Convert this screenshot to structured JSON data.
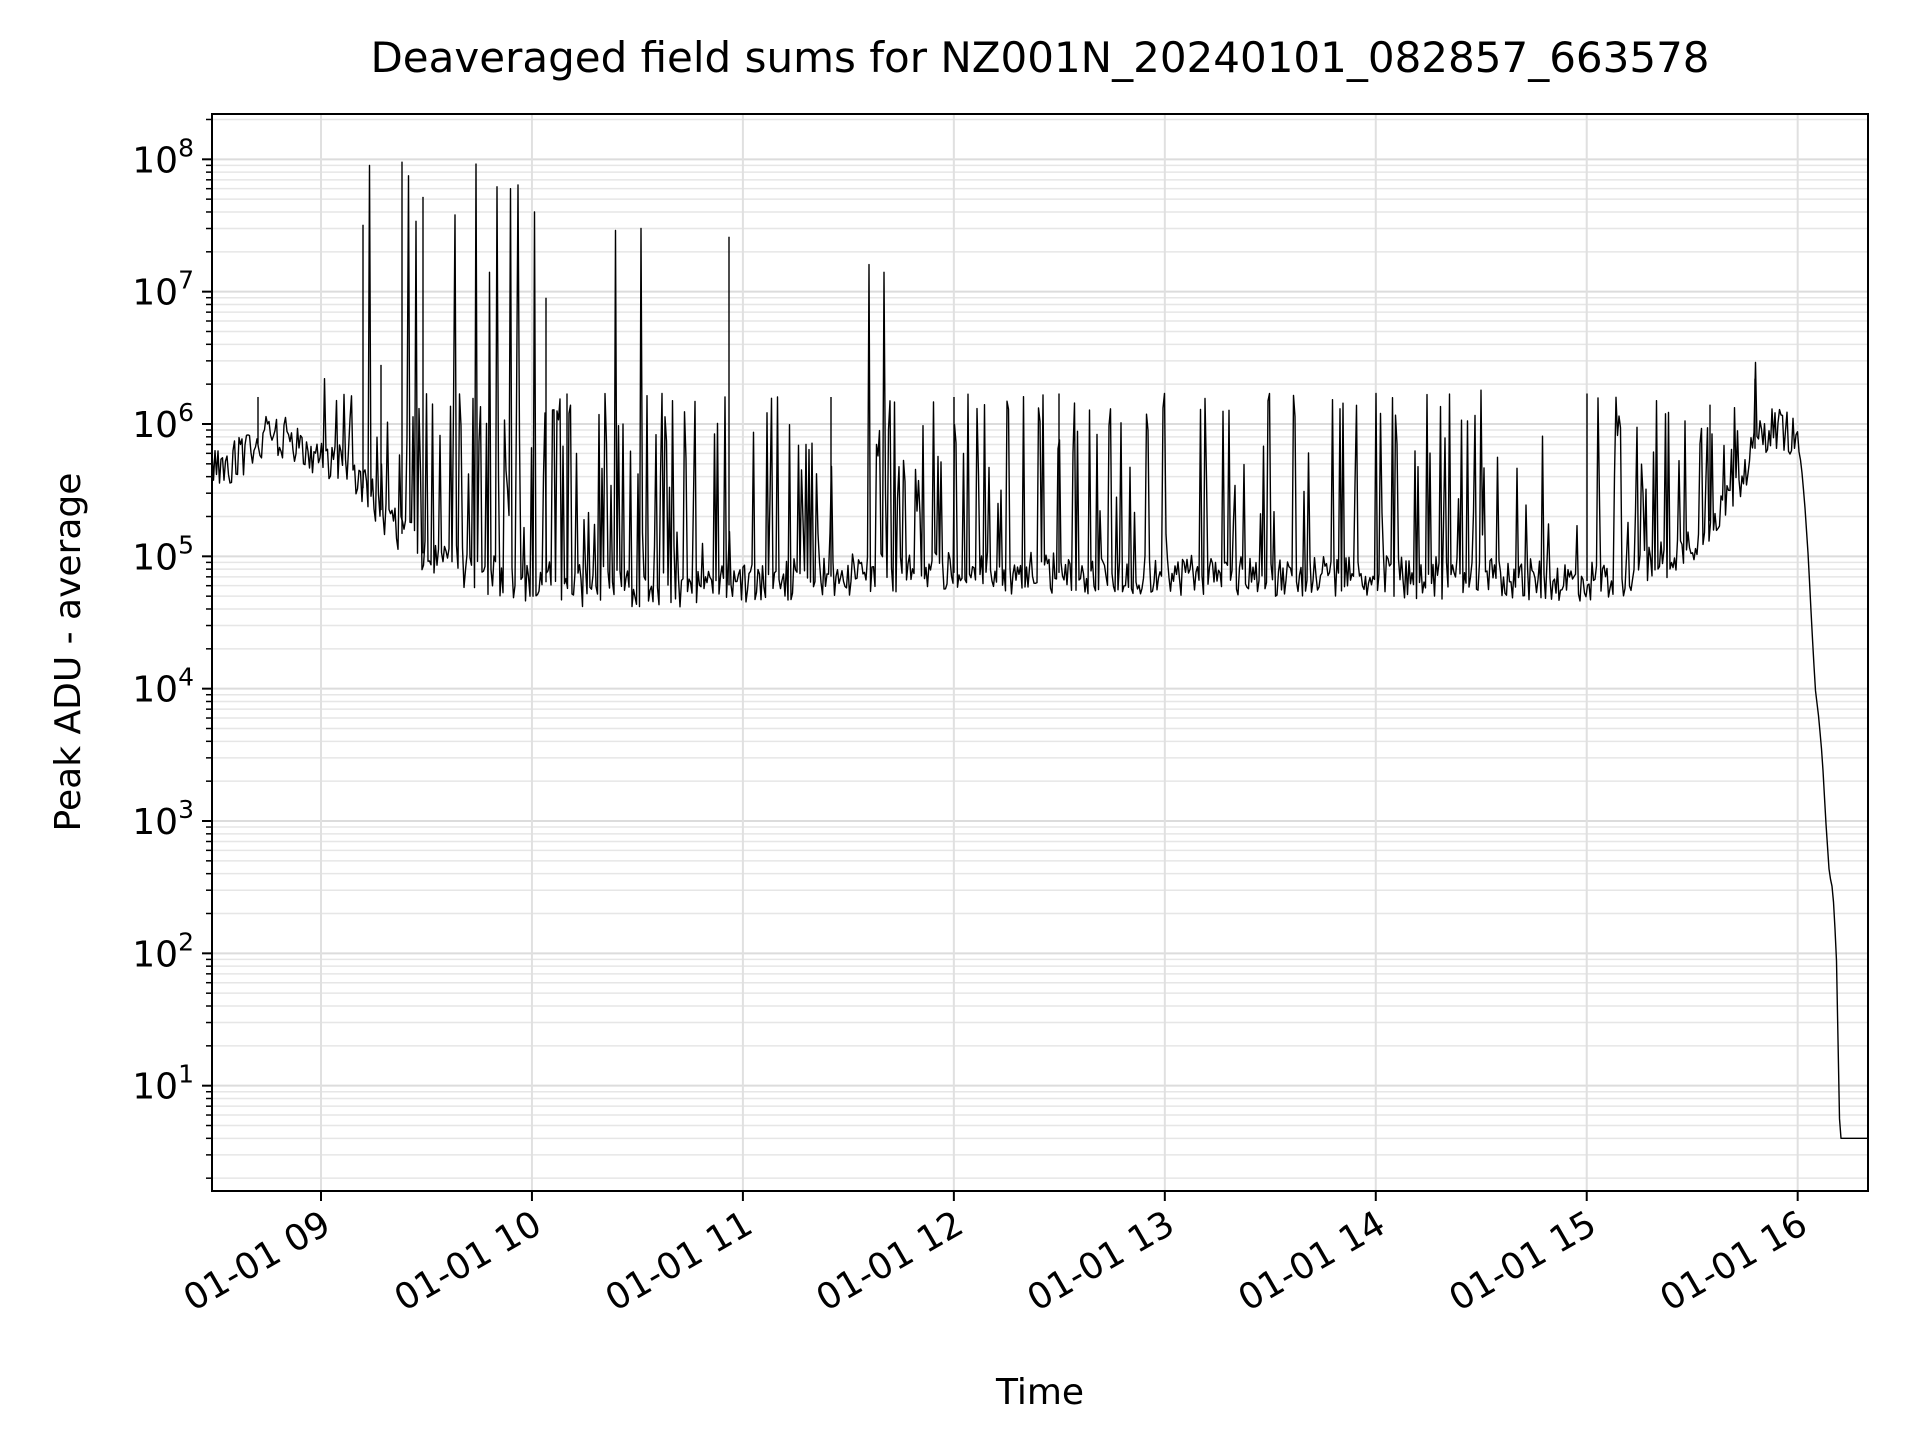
{
  "chart_data": {
    "type": "line",
    "title": "Deaveraged field sums for NZ001N_20240101_082857_663578",
    "xlabel": "Time",
    "ylabel": "Peak ADU - average",
    "yscale": "log",
    "ylim": [
      1.6,
      220000000
    ],
    "xlim": [
      "2024-01-01T08:29:00",
      "2024-01-01T16:20:00"
    ],
    "grid": "major and minor, light gray",
    "legend": "none",
    "line_color": "#000000",
    "x_ticks": [
      {
        "t": "2024-01-01T09:00:00",
        "label": "01-01 09"
      },
      {
        "t": "2024-01-01T10:00:00",
        "label": "01-01 10"
      },
      {
        "t": "2024-01-01T11:00:00",
        "label": "01-01 11"
      },
      {
        "t": "2024-01-01T12:00:00",
        "label": "01-01 12"
      },
      {
        "t": "2024-01-01T13:00:00",
        "label": "01-01 13"
      },
      {
        "t": "2024-01-01T14:00:00",
        "label": "01-01 14"
      },
      {
        "t": "2024-01-01T15:00:00",
        "label": "01-01 15"
      },
      {
        "t": "2024-01-01T16:00:00",
        "label": "01-01 16"
      }
    ],
    "y_ticks": [
      {
        "value": 10,
        "base": "10",
        "exp": "1"
      },
      {
        "value": 100,
        "base": "10",
        "exp": "2"
      },
      {
        "value": 1000,
        "base": "10",
        "exp": "3"
      },
      {
        "value": 10000,
        "base": "10",
        "exp": "4"
      },
      {
        "value": 100000,
        "base": "10",
        "exp": "5"
      },
      {
        "value": 1000000,
        "base": "10",
        "exp": "6"
      },
      {
        "value": 10000000,
        "base": "10",
        "exp": "7"
      },
      {
        "value": 100000000,
        "base": "10",
        "exp": "8"
      }
    ],
    "series": [
      {
        "points": [
          [
            "2024-01-01T08:29:00",
            450000
          ],
          [
            "2024-01-01T08:35:00",
            520000
          ],
          [
            "2024-01-01T08:40:00",
            640000
          ],
          [
            "2024-01-01T08:45:00",
            820000
          ],
          [
            "2024-01-01T08:50:00",
            780000
          ],
          [
            "2024-01-01T08:55:00",
            640000
          ],
          [
            "2024-01-01T09:00:00",
            580000
          ],
          [
            "2024-01-01T09:05:00",
            520000
          ],
          [
            "2024-01-01T09:10:00",
            380000
          ],
          [
            "2024-01-01T09:15:00",
            260000
          ],
          [
            "2024-01-01T09:20:00",
            180000
          ],
          [
            "2024-01-01T09:25:00",
            130000
          ],
          [
            "2024-01-01T09:30:00",
            100000
          ],
          [
            "2024-01-01T09:40:00",
            85000
          ],
          [
            "2024-01-01T09:50:00",
            70000
          ],
          [
            "2024-01-01T10:00:00",
            65000
          ],
          [
            "2024-01-01T10:15:00",
            60000
          ],
          [
            "2024-01-01T10:30:00",
            58000
          ],
          [
            "2024-01-01T10:45:00",
            56000
          ],
          [
            "2024-01-01T11:00:00",
            62000
          ],
          [
            "2024-01-01T11:30:00",
            72000
          ],
          [
            "2024-01-01T12:00:00",
            75000
          ],
          [
            "2024-01-01T12:30:00",
            75000
          ],
          [
            "2024-01-01T13:00:00",
            72000
          ],
          [
            "2024-01-01T13:30:00",
            72000
          ],
          [
            "2024-01-01T14:00:00",
            70000
          ],
          [
            "2024-01-01T14:30:00",
            68000
          ],
          [
            "2024-01-01T15:00:00",
            65000
          ],
          [
            "2024-01-01T15:10:00",
            70000
          ],
          [
            "2024-01-01T15:20:00",
            90000
          ],
          [
            "2024-01-01T15:30:00",
            130000
          ],
          [
            "2024-01-01T15:40:00",
            260000
          ],
          [
            "2024-01-01T15:47:00",
            600000
          ],
          [
            "2024-01-01T15:52:00",
            950000
          ],
          [
            "2024-01-01T15:57:00",
            900000
          ],
          [
            "2024-01-01T16:00:00",
            700000
          ],
          [
            "2024-01-01T16:01:00",
            500000
          ],
          [
            "2024-01-01T16:02:00",
            250000
          ],
          [
            "2024-01-01T16:03:00",
            100000
          ],
          [
            "2024-01-01T16:04:00",
            30000
          ],
          [
            "2024-01-01T16:05:00",
            10000
          ],
          [
            "2024-01-01T16:06:00",
            6000
          ],
          [
            "2024-01-01T16:07:00",
            3000
          ],
          [
            "2024-01-01T16:08:00",
            1000
          ],
          [
            "2024-01-01T16:09:00",
            400
          ],
          [
            "2024-01-01T16:10:00",
            300
          ],
          [
            "2024-01-01T16:11:00",
            100
          ],
          [
            "2024-01-01T16:12:00",
            4
          ],
          [
            "2024-01-01T16:20:00",
            4
          ]
        ],
        "spikes": [
          [
            "2024-01-01T08:42:00",
            1600000
          ],
          [
            "2024-01-01T09:01:00",
            2200000
          ],
          [
            "2024-01-01T09:12:00",
            32000000
          ],
          [
            "2024-01-01T09:14:00",
            90000000
          ],
          [
            "2024-01-01T09:17:00",
            2800000
          ],
          [
            "2024-01-01T09:23:00",
            96000000
          ],
          [
            "2024-01-01T09:25:00",
            75000000
          ],
          [
            "2024-01-01T09:27:00",
            34000000
          ],
          [
            "2024-01-01T09:29:00",
            52000000
          ],
          [
            "2024-01-01T09:38:00",
            38000000
          ],
          [
            "2024-01-01T09:44:00",
            92000000
          ],
          [
            "2024-01-01T09:48:00",
            14000000
          ],
          [
            "2024-01-01T09:50:00",
            62000000
          ],
          [
            "2024-01-01T09:54:00",
            60000000
          ],
          [
            "2024-01-01T09:56:00",
            64000000
          ],
          [
            "2024-01-01T10:01:00",
            40000000
          ],
          [
            "2024-01-01T10:04:00",
            9000000
          ],
          [
            "2024-01-01T10:10:00",
            1700000
          ],
          [
            "2024-01-01T10:24:00",
            29000000
          ],
          [
            "2024-01-01T10:31:00",
            30000000
          ],
          [
            "2024-01-01T10:40:00",
            1500000
          ],
          [
            "2024-01-01T10:55:00",
            1600000
          ],
          [
            "2024-01-01T10:56:00",
            26000000
          ],
          [
            "2024-01-01T11:10:00",
            1600000
          ],
          [
            "2024-01-01T11:25:00",
            1600000
          ],
          [
            "2024-01-01T11:36:00",
            16000000
          ],
          [
            "2024-01-01T11:40:00",
            14000000
          ],
          [
            "2024-01-01T12:00:00",
            1600000
          ],
          [
            "2024-01-01T12:30:00",
            1700000
          ],
          [
            "2024-01-01T13:00:00",
            1700000
          ],
          [
            "2024-01-01T13:30:00",
            1700000
          ],
          [
            "2024-01-01T14:00:00",
            1700000
          ],
          [
            "2024-01-01T14:30:00",
            1800000
          ],
          [
            "2024-01-01T15:00:00",
            1700000
          ],
          [
            "2024-01-01T15:20:00",
            1500000
          ],
          [
            "2024-01-01T15:35:00",
            1400000
          ],
          [
            "2024-01-01T15:48:00",
            2200000
          ]
        ]
      }
    ]
  }
}
